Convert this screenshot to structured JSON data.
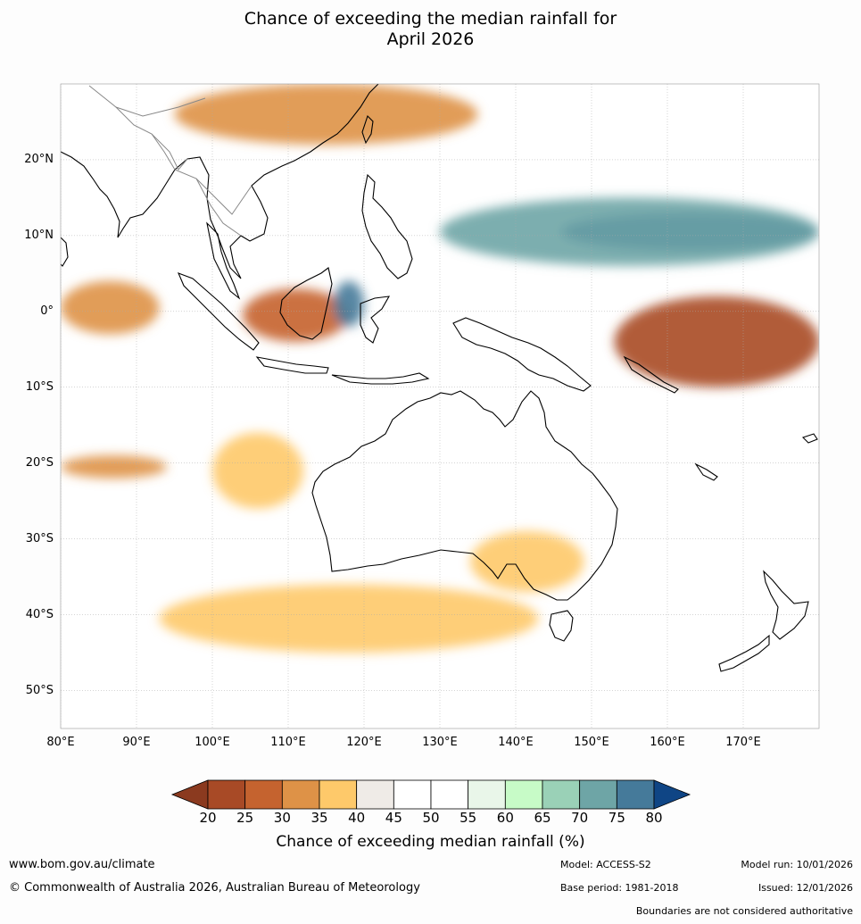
{
  "title": {
    "line1": "Chance of exceeding the median rainfall for",
    "line2": "April 2026"
  },
  "map": {
    "lat_labels": [
      "20°N",
      "10°N",
      "0°",
      "10°S",
      "20°S",
      "30°S",
      "40°S",
      "50°S"
    ],
    "lat_values": [
      20,
      10,
      0,
      -10,
      -20,
      -30,
      -40,
      -50
    ],
    "lon_labels": [
      "80°E",
      "90°E",
      "100°E",
      "110°E",
      "120°E",
      "130°E",
      "140°E",
      "150°E",
      "160°E",
      "170°E"
    ],
    "lon_values": [
      80,
      90,
      100,
      110,
      120,
      130,
      140,
      150,
      160,
      170
    ],
    "extent": {
      "lon": [
        80,
        180
      ],
      "lat": [
        -55,
        30
      ]
    },
    "regions": [
      {
        "name": "equatorial-west-pacific-wet",
        "level": 80,
        "lon": [
          146,
          180
        ],
        "lat": [
          8,
          13
        ]
      },
      {
        "name": "philippine-sea-wet",
        "level": 70,
        "lon": [
          130,
          180
        ],
        "lat": [
          6,
          15
        ]
      },
      {
        "name": "east-pacific-dry",
        "level": 20,
        "lon": [
          153,
          180
        ],
        "lat": [
          -10,
          2
        ]
      },
      {
        "name": "borneo-sumatra-dry",
        "level": 25,
        "lon": [
          104,
          118
        ],
        "lat": [
          -4,
          3
        ]
      },
      {
        "name": "indian-ocean-eq-dry",
        "level": 30,
        "lon": [
          80,
          93
        ],
        "lat": [
          -3,
          4
        ]
      },
      {
        "name": "indian-ocean-20s-dry",
        "level": 30,
        "lon": [
          80,
          94
        ],
        "lat": [
          -22,
          -19
        ]
      },
      {
        "name": "indian-ocean-nw-aus-dry",
        "level": 35,
        "lon": [
          100,
          112
        ],
        "lat": [
          -26,
          -16
        ]
      },
      {
        "name": "southern-ocean-dry",
        "level": 35,
        "lon": [
          93,
          143
        ],
        "lat": [
          -45,
          -36
        ]
      },
      {
        "name": "se-australia-dry",
        "level": 35,
        "lon": [
          134,
          149
        ],
        "lat": [
          -37,
          -29
        ]
      },
      {
        "name": "south-china-dry",
        "level": 30,
        "lon": [
          95,
          135
        ],
        "lat": [
          22,
          30
        ]
      },
      {
        "name": "sulawesi-wet",
        "level": 75,
        "lon": [
          116,
          120
        ],
        "lat": [
          -2,
          4
        ]
      }
    ]
  },
  "colorbar": {
    "levels": [
      20,
      25,
      30,
      35,
      40,
      45,
      50,
      55,
      60,
      65,
      70,
      75,
      80
    ],
    "tick_labels": [
      "20",
      "25",
      "30",
      "35",
      "40",
      "45",
      "50",
      "55",
      "60",
      "65",
      "70",
      "75",
      "80"
    ],
    "colors": [
      "#8b3a1f",
      "#a84a26",
      "#c5632f",
      "#de9247",
      "#fec96a",
      "#efebe7",
      "#ffffff",
      "#ffffff",
      "#e9f6e9",
      "#c7fbc7",
      "#9ad1b7",
      "#6ea5a6",
      "#457a9a",
      "#0f4585"
    ],
    "label": "Chance of exceeding median rainfall (%)"
  },
  "footer": {
    "website": "www.bom.gov.au/climate",
    "copyright": "© Commonwealth of Australia 2026, Australian Bureau of Meteorology",
    "model": "Model: ACCESS-S2",
    "base_period": "Base period: 1981-2018",
    "model_run": "Model run: 10/01/2026",
    "issued": "Issued: 12/01/2026",
    "boundaries_note": "Boundaries are not considered authoritative"
  }
}
